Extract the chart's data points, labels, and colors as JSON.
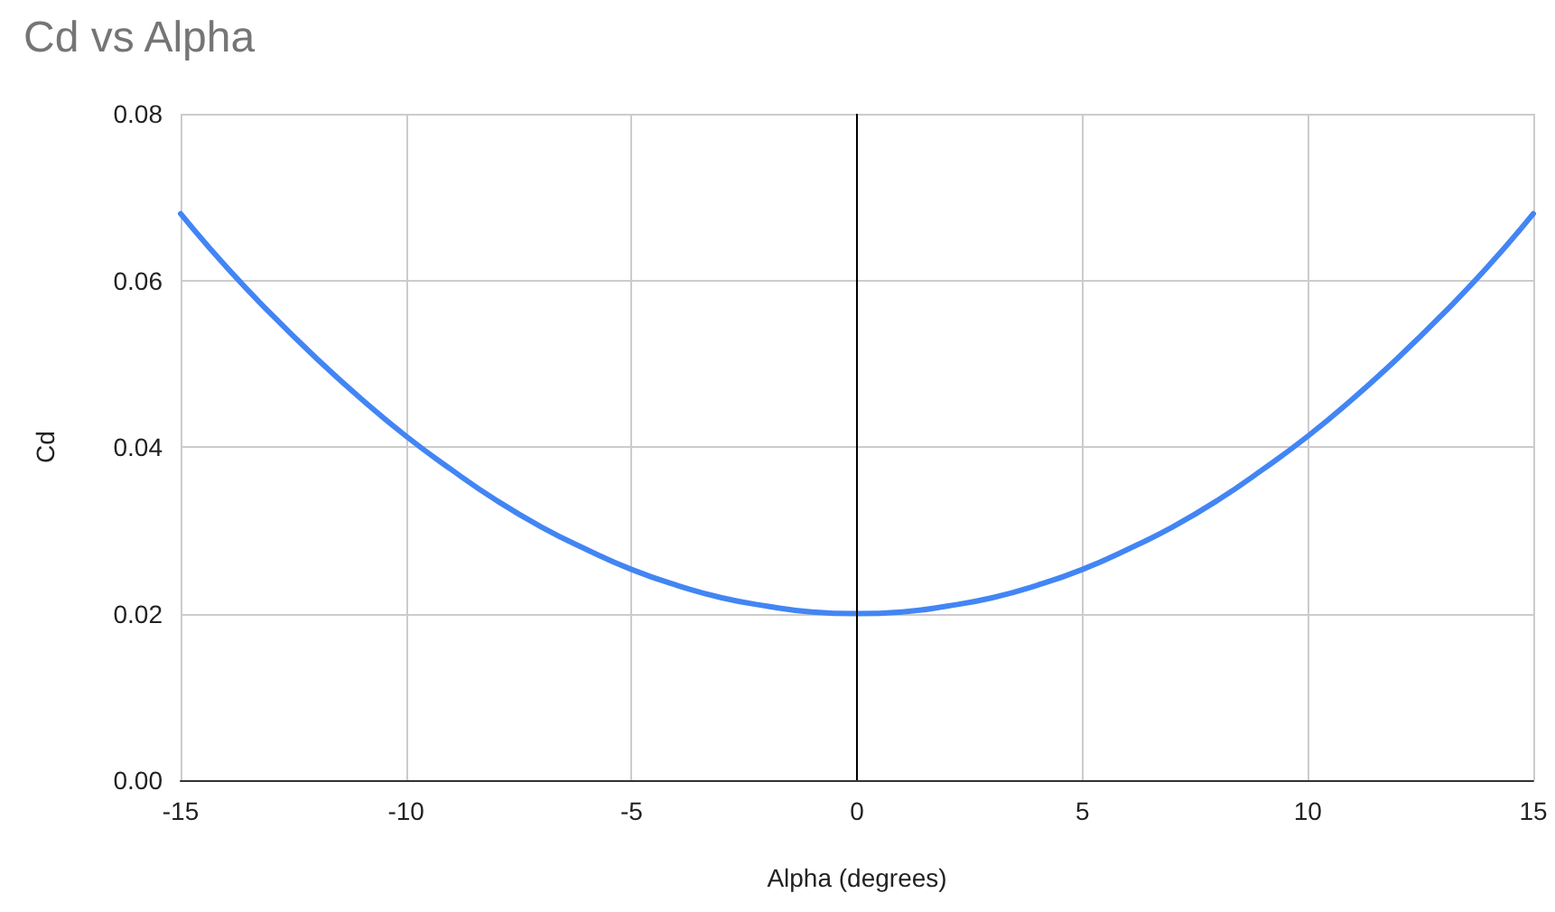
{
  "chart_data": {
    "type": "line",
    "title": "Cd vs Alpha",
    "xlabel": "Alpha (degrees)",
    "ylabel": "Cd",
    "x": [
      -15,
      -14,
      -13,
      -12,
      -11,
      -10,
      -9,
      -8,
      -7,
      -6,
      -5,
      -4,
      -3,
      -2,
      -1,
      0,
      1,
      2,
      3,
      4,
      5,
      6,
      7,
      8,
      9,
      10,
      11,
      12,
      13,
      14,
      15
    ],
    "series": [
      {
        "color": "#4285f4",
        "values": [
          0.068,
          0.0617,
          0.056,
          0.0507,
          0.0458,
          0.0413,
          0.0373,
          0.0336,
          0.0304,
          0.0277,
          0.0253,
          0.0234,
          0.0219,
          0.0209,
          0.0202,
          0.02,
          0.0202,
          0.0209,
          0.0219,
          0.0234,
          0.0253,
          0.0277,
          0.0304,
          0.0336,
          0.0373,
          0.0413,
          0.0458,
          0.0507,
          0.056,
          0.0617,
          0.068
        ]
      }
    ],
    "xlim": [
      -15,
      15
    ],
    "xticks": [
      -15,
      -10,
      -5,
      0,
      5,
      10,
      15
    ],
    "ylim": [
      0,
      0.08
    ],
    "yticks": [
      {
        "value": 0,
        "label": "0.00"
      },
      {
        "value": 0.02,
        "label": "0.02"
      },
      {
        "value": 0.04,
        "label": "0.04"
      },
      {
        "value": 0.06,
        "label": "0.06"
      },
      {
        "value": 0.08,
        "label": "0.08"
      }
    ],
    "ref_lines": [
      {
        "axis": "x",
        "value": 0,
        "color": "#000000"
      }
    ],
    "grid": true,
    "marker": "none",
    "line_style": "solid"
  }
}
